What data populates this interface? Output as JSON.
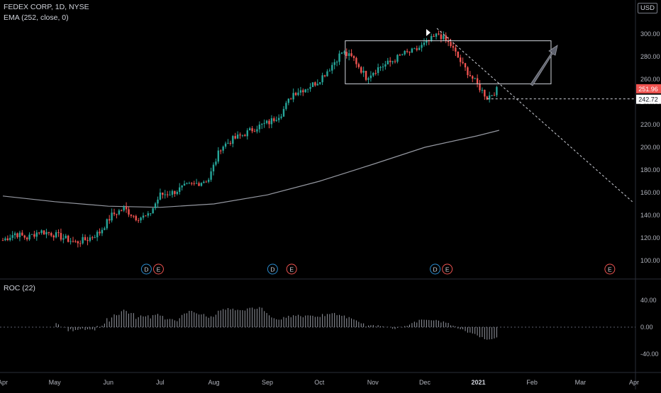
{
  "header": {
    "title": "FEDEX CORP, 1D, NYSE",
    "ema_label": "EMA (252, close, 0)",
    "roc_label": "ROC (22)",
    "currency": "USD"
  },
  "colors": {
    "background": "#000000",
    "up": "#26a69a",
    "down": "#ef5350",
    "ema": "#9598a1",
    "roc": "#9598a1",
    "grid": "#1a1a1a",
    "axis_text": "#b2b5be",
    "price_badge": "#ef5350",
    "dividend_marker": "#2a8ccf",
    "earnings_marker": "#ef5350"
  },
  "chart_data": {
    "type": "candlestick",
    "symbol": "FEDEX CORP",
    "interval": "1D",
    "exchange": "NYSE",
    "y_axis": {
      "ticks": [
        100,
        120,
        140,
        160,
        180,
        200,
        220,
        240,
        260,
        280,
        300
      ],
      "labels": [
        "100.00",
        "120.00",
        "140.00",
        "160.00",
        "180.00",
        "200.00",
        "220.00",
        "240.00",
        "260.00",
        "280.00",
        "300.00"
      ]
    },
    "x_axis": {
      "ticks": [
        "Apr",
        "May",
        "Jun",
        "Jul",
        "Aug",
        "Sep",
        "Oct",
        "Nov",
        "Dec",
        "2021",
        "Feb",
        "Mar",
        "Apr"
      ]
    },
    "last_price": "251.96",
    "marked_level": "242.72",
    "series_close_weekly": [
      [
        "2020-04-01",
        118
      ],
      [
        "2020-04-08",
        124
      ],
      [
        "2020-04-15",
        120
      ],
      [
        "2020-04-22",
        126
      ],
      [
        "2020-04-29",
        124
      ],
      [
        "2020-05-06",
        120
      ],
      [
        "2020-05-13",
        116
      ],
      [
        "2020-05-20",
        119
      ],
      [
        "2020-05-27",
        125
      ],
      [
        "2020-06-03",
        140
      ],
      [
        "2020-06-10",
        146
      ],
      [
        "2020-06-17",
        138
      ],
      [
        "2020-06-24",
        139
      ],
      [
        "2020-07-01",
        158
      ],
      [
        "2020-07-08",
        160
      ],
      [
        "2020-07-15",
        165
      ],
      [
        "2020-07-22",
        168
      ],
      [
        "2020-07-29",
        172
      ],
      [
        "2020-08-05",
        200
      ],
      [
        "2020-08-12",
        207
      ],
      [
        "2020-08-19",
        212
      ],
      [
        "2020-08-26",
        218
      ],
      [
        "2020-09-02",
        222
      ],
      [
        "2020-09-09",
        230
      ],
      [
        "2020-09-16",
        248
      ],
      [
        "2020-09-23",
        252
      ],
      [
        "2020-09-30",
        258
      ],
      [
        "2020-10-07",
        270
      ],
      [
        "2020-10-14",
        284
      ],
      [
        "2020-10-21",
        278
      ],
      [
        "2020-10-28",
        262
      ],
      [
        "2020-11-04",
        270
      ],
      [
        "2020-11-11",
        275
      ],
      [
        "2020-11-18",
        282
      ],
      [
        "2020-11-25",
        285
      ],
      [
        "2020-12-02",
        292
      ],
      [
        "2020-12-09",
        300
      ],
      [
        "2020-12-16",
        290
      ],
      [
        "2020-12-23",
        272
      ],
      [
        "2020-12-30",
        258
      ],
      [
        "2021-01-06",
        244
      ],
      [
        "2021-01-13",
        252
      ]
    ],
    "ema": {
      "period": 252,
      "values": [
        [
          "2020-04-01",
          157
        ],
        [
          "2020-05-01",
          152
        ],
        [
          "2020-06-01",
          148
        ],
        [
          "2020-07-01",
          147
        ],
        [
          "2020-08-01",
          150
        ],
        [
          "2020-09-01",
          158
        ],
        [
          "2020-10-01",
          170
        ],
        [
          "2020-11-01",
          185
        ],
        [
          "2020-12-01",
          200
        ],
        [
          "2020-12-31",
          210
        ],
        [
          "2021-01-13",
          215
        ]
      ]
    },
    "roc": {
      "period": 22,
      "ticks": [
        -40,
        0,
        40
      ],
      "labels": [
        "-40.00",
        "0.00",
        "40.00"
      ]
    },
    "annotations": {
      "rectangle": {
        "from": "2020-10-16",
        "to": "2021-02-12",
        "low": 256,
        "high": 294
      },
      "trendline": {
        "from": [
          "2020-12-08",
          305
        ],
        "to": [
          "2021-03-31",
          152
        ]
      },
      "arrow": "up",
      "horizontal_level": 242.72
    },
    "event_markers": [
      {
        "label": "D",
        "kind": "dividend",
        "date": "2020-06-23"
      },
      {
        "label": "E",
        "kind": "earnings",
        "date": "2020-06-30"
      },
      {
        "label": "D",
        "kind": "dividend",
        "date": "2020-09-04"
      },
      {
        "label": "E",
        "kind": "earnings",
        "date": "2020-09-15"
      },
      {
        "label": "D",
        "kind": "dividend",
        "date": "2020-12-07"
      },
      {
        "label": "E",
        "kind": "earnings",
        "date": "2020-12-14"
      },
      {
        "label": "E",
        "kind": "earnings",
        "date": "2021-03-18"
      }
    ]
  }
}
